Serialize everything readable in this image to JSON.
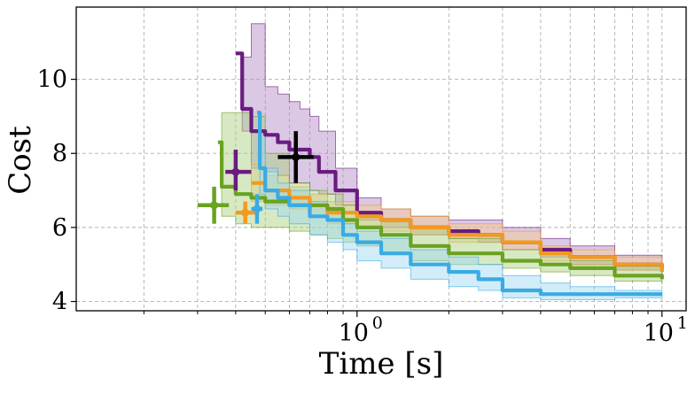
{
  "chart_data": {
    "type": "line",
    "title": "",
    "xlabel": "Time [s]",
    "ylabel": "Cost",
    "xscale": "log",
    "xlim": [
      0.12,
      12
    ],
    "ylim": [
      3.75,
      11.95
    ],
    "grid": true,
    "x_ticks": [
      {
        "value": 1,
        "base": "10",
        "exp": "0"
      },
      {
        "value": 10,
        "base": "10",
        "exp": "1"
      }
    ],
    "y_ticks": [
      4,
      6,
      8,
      10
    ],
    "colors": {
      "purple": "#6a1b80",
      "orange": "#f29a1f",
      "green": "#6aa222",
      "blue": "#3aabe3",
      "black": "#000000"
    },
    "series": [
      {
        "color": "#6a1b80",
        "band_color": "#b086c4",
        "x": [
          0.4,
          0.42,
          0.45,
          0.5,
          0.55,
          0.6,
          0.65,
          0.7,
          0.75,
          0.85,
          1.0,
          1.2,
          1.5,
          2.0,
          2.5,
          3.0,
          4.0,
          5.0,
          7.0,
          10.0
        ],
        "y": [
          10.7,
          9.2,
          8.6,
          8.5,
          8.3,
          8.1,
          8.1,
          7.9,
          7.5,
          7.0,
          6.4,
          6.2,
          6.0,
          5.9,
          5.8,
          5.6,
          5.4,
          5.2,
          5.0,
          4.9
        ],
        "lower": [
          10.7,
          8.6,
          7.6,
          7.5,
          7.4,
          7.2,
          7.2,
          7.0,
          6.9,
          6.6,
          6.2,
          6.0,
          5.8,
          5.7,
          5.6,
          5.4,
          5.2,
          5.0,
          4.85,
          4.75
        ],
        "upper": [
          10.7,
          10.6,
          11.5,
          9.8,
          9.6,
          9.4,
          9.2,
          9.0,
          8.6,
          7.6,
          6.8,
          6.5,
          6.3,
          6.2,
          6.2,
          6.0,
          5.7,
          5.5,
          5.25,
          5.1
        ],
        "start_marker": {
          "x": 0.4,
          "y": 7.5,
          "x_err": [
            0.37,
            0.45
          ],
          "y_err": [
            7.0,
            8.1
          ]
        }
      },
      {
        "color": "#f29a1f",
        "band_color": "#f6c98e",
        "x": [
          0.45,
          0.5,
          0.6,
          0.7,
          0.8,
          1.0,
          1.2,
          1.5,
          2.0,
          3.0,
          4.0,
          5.0,
          7.0,
          10.0
        ],
        "y": [
          7.2,
          7.0,
          6.8,
          6.6,
          6.4,
          6.3,
          6.2,
          6.0,
          5.8,
          5.6,
          5.3,
          5.2,
          5.0,
          4.8
        ],
        "lower": [
          6.7,
          6.6,
          6.5,
          6.3,
          6.1,
          6.0,
          5.9,
          5.8,
          5.6,
          5.4,
          5.1,
          5.0,
          4.85,
          4.7
        ],
        "upper": [
          7.7,
          7.4,
          7.1,
          6.9,
          6.7,
          6.6,
          6.5,
          6.3,
          6.1,
          5.9,
          5.5,
          5.4,
          5.2,
          5.0
        ],
        "start_marker": {
          "x": 0.43,
          "y": 6.4,
          "x_err": [
            0.4,
            0.47
          ],
          "y_err": [
            6.1,
            6.7
          ]
        }
      },
      {
        "color": "#6aa222",
        "band_color": "#a6cf7a",
        "x": [
          0.35,
          0.36,
          0.4,
          0.45,
          0.5,
          0.6,
          0.7,
          0.8,
          0.9,
          1.0,
          1.2,
          1.5,
          2.0,
          3.0,
          4.0,
          5.0,
          7.0,
          10.0
        ],
        "y": [
          8.3,
          7.1,
          6.9,
          6.8,
          6.7,
          6.6,
          6.6,
          6.5,
          6.2,
          6.0,
          5.8,
          5.5,
          5.3,
          5.1,
          5.0,
          4.9,
          4.7,
          4.6
        ],
        "lower": [
          8.3,
          6.3,
          6.1,
          6.0,
          6.0,
          5.9,
          5.8,
          5.7,
          5.6,
          5.5,
          5.3,
          5.1,
          5.0,
          4.9,
          4.8,
          4.7,
          4.55,
          4.45
        ],
        "upper": [
          8.3,
          9.1,
          9.1,
          9.0,
          8.0,
          7.2,
          7.0,
          6.9,
          6.6,
          6.4,
          6.2,
          6.0,
          5.7,
          5.4,
          5.3,
          5.1,
          4.95,
          4.8
        ],
        "start_marker": {
          "x": 0.34,
          "y": 6.6,
          "x_err": [
            0.3,
            0.38
          ],
          "y_err": [
            6.1,
            7.1
          ]
        }
      },
      {
        "color": "#3aabe3",
        "band_color": "#9cd6f1",
        "x": [
          0.47,
          0.48,
          0.5,
          0.55,
          0.6,
          0.7,
          0.8,
          0.9,
          1.0,
          1.2,
          1.5,
          2.0,
          2.5,
          3.0,
          4.0,
          5.0,
          7.0,
          10.0
        ],
        "y": [
          9.1,
          7.6,
          7.0,
          6.8,
          6.6,
          6.3,
          6.2,
          5.8,
          5.6,
          5.3,
          5.0,
          4.8,
          4.6,
          4.3,
          4.2,
          4.2,
          4.2,
          4.2
        ],
        "lower": [
          9.1,
          6.9,
          6.5,
          6.3,
          6.1,
          5.8,
          5.6,
          5.4,
          5.1,
          4.9,
          4.6,
          4.4,
          4.3,
          4.1,
          4.05,
          4.05,
          4.1,
          4.1
        ],
        "upper": [
          9.1,
          8.6,
          7.6,
          7.2,
          7.0,
          6.7,
          6.5,
          6.1,
          5.9,
          5.7,
          5.4,
          5.2,
          5.0,
          4.7,
          4.5,
          4.4,
          4.3,
          4.3
        ],
        "start_marker": {
          "x": 0.47,
          "y": 6.5,
          "x_err": [
            0.45,
            0.49
          ],
          "y_err": [
            6.1,
            6.9
          ]
        }
      },
      {
        "color": "#000000",
        "marker_only": true,
        "start_marker": {
          "x": 0.63,
          "y": 7.9,
          "x_err": [
            0.55,
            0.72
          ],
          "y_err": [
            7.2,
            8.6
          ]
        }
      }
    ]
  }
}
